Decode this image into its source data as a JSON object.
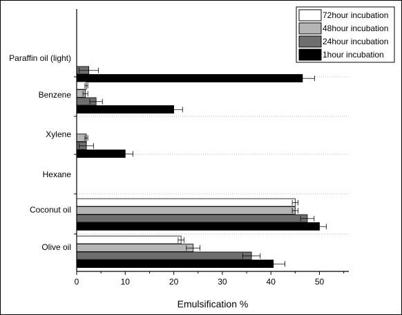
{
  "chart_data": {
    "type": "bar",
    "orientation": "horizontal",
    "xlabel": "Emulsification %",
    "xlim": [
      0,
      56
    ],
    "xticks": [
      0,
      10,
      20,
      30,
      40,
      50
    ],
    "categories": [
      "Paraffin oil (light)",
      "Benzene",
      "Xylene",
      "Hexane",
      "Coconut oil",
      "Olive oil"
    ],
    "legend_position": "top-right",
    "series": [
      {
        "name": "72hour incubation",
        "color": "#ffffff",
        "values": [
          0,
          2,
          0,
          0,
          45,
          21.5
        ],
        "errors": [
          0,
          0.3,
          0,
          0,
          0.6,
          0.6
        ]
      },
      {
        "name": "48hour incubation",
        "color": "#b5b5b5",
        "values": [
          0,
          1.8,
          2,
          0,
          45,
          24
        ],
        "errors": [
          0,
          0.5,
          0.3,
          0,
          0.6,
          1.4
        ]
      },
      {
        "name": "24hour incubation",
        "color": "#6e6e6e",
        "values": [
          2.5,
          4,
          2,
          0,
          47.5,
          36
        ],
        "errors": [
          2,
          1.3,
          1.5,
          0,
          1.4,
          1.8
        ]
      },
      {
        "name": "1hour incubation",
        "color": "#000000",
        "values": [
          46.5,
          20,
          10,
          0,
          50,
          40.5
        ],
        "errors": [
          2.5,
          1.8,
          1.6,
          0,
          1.4,
          2.4
        ]
      }
    ]
  }
}
